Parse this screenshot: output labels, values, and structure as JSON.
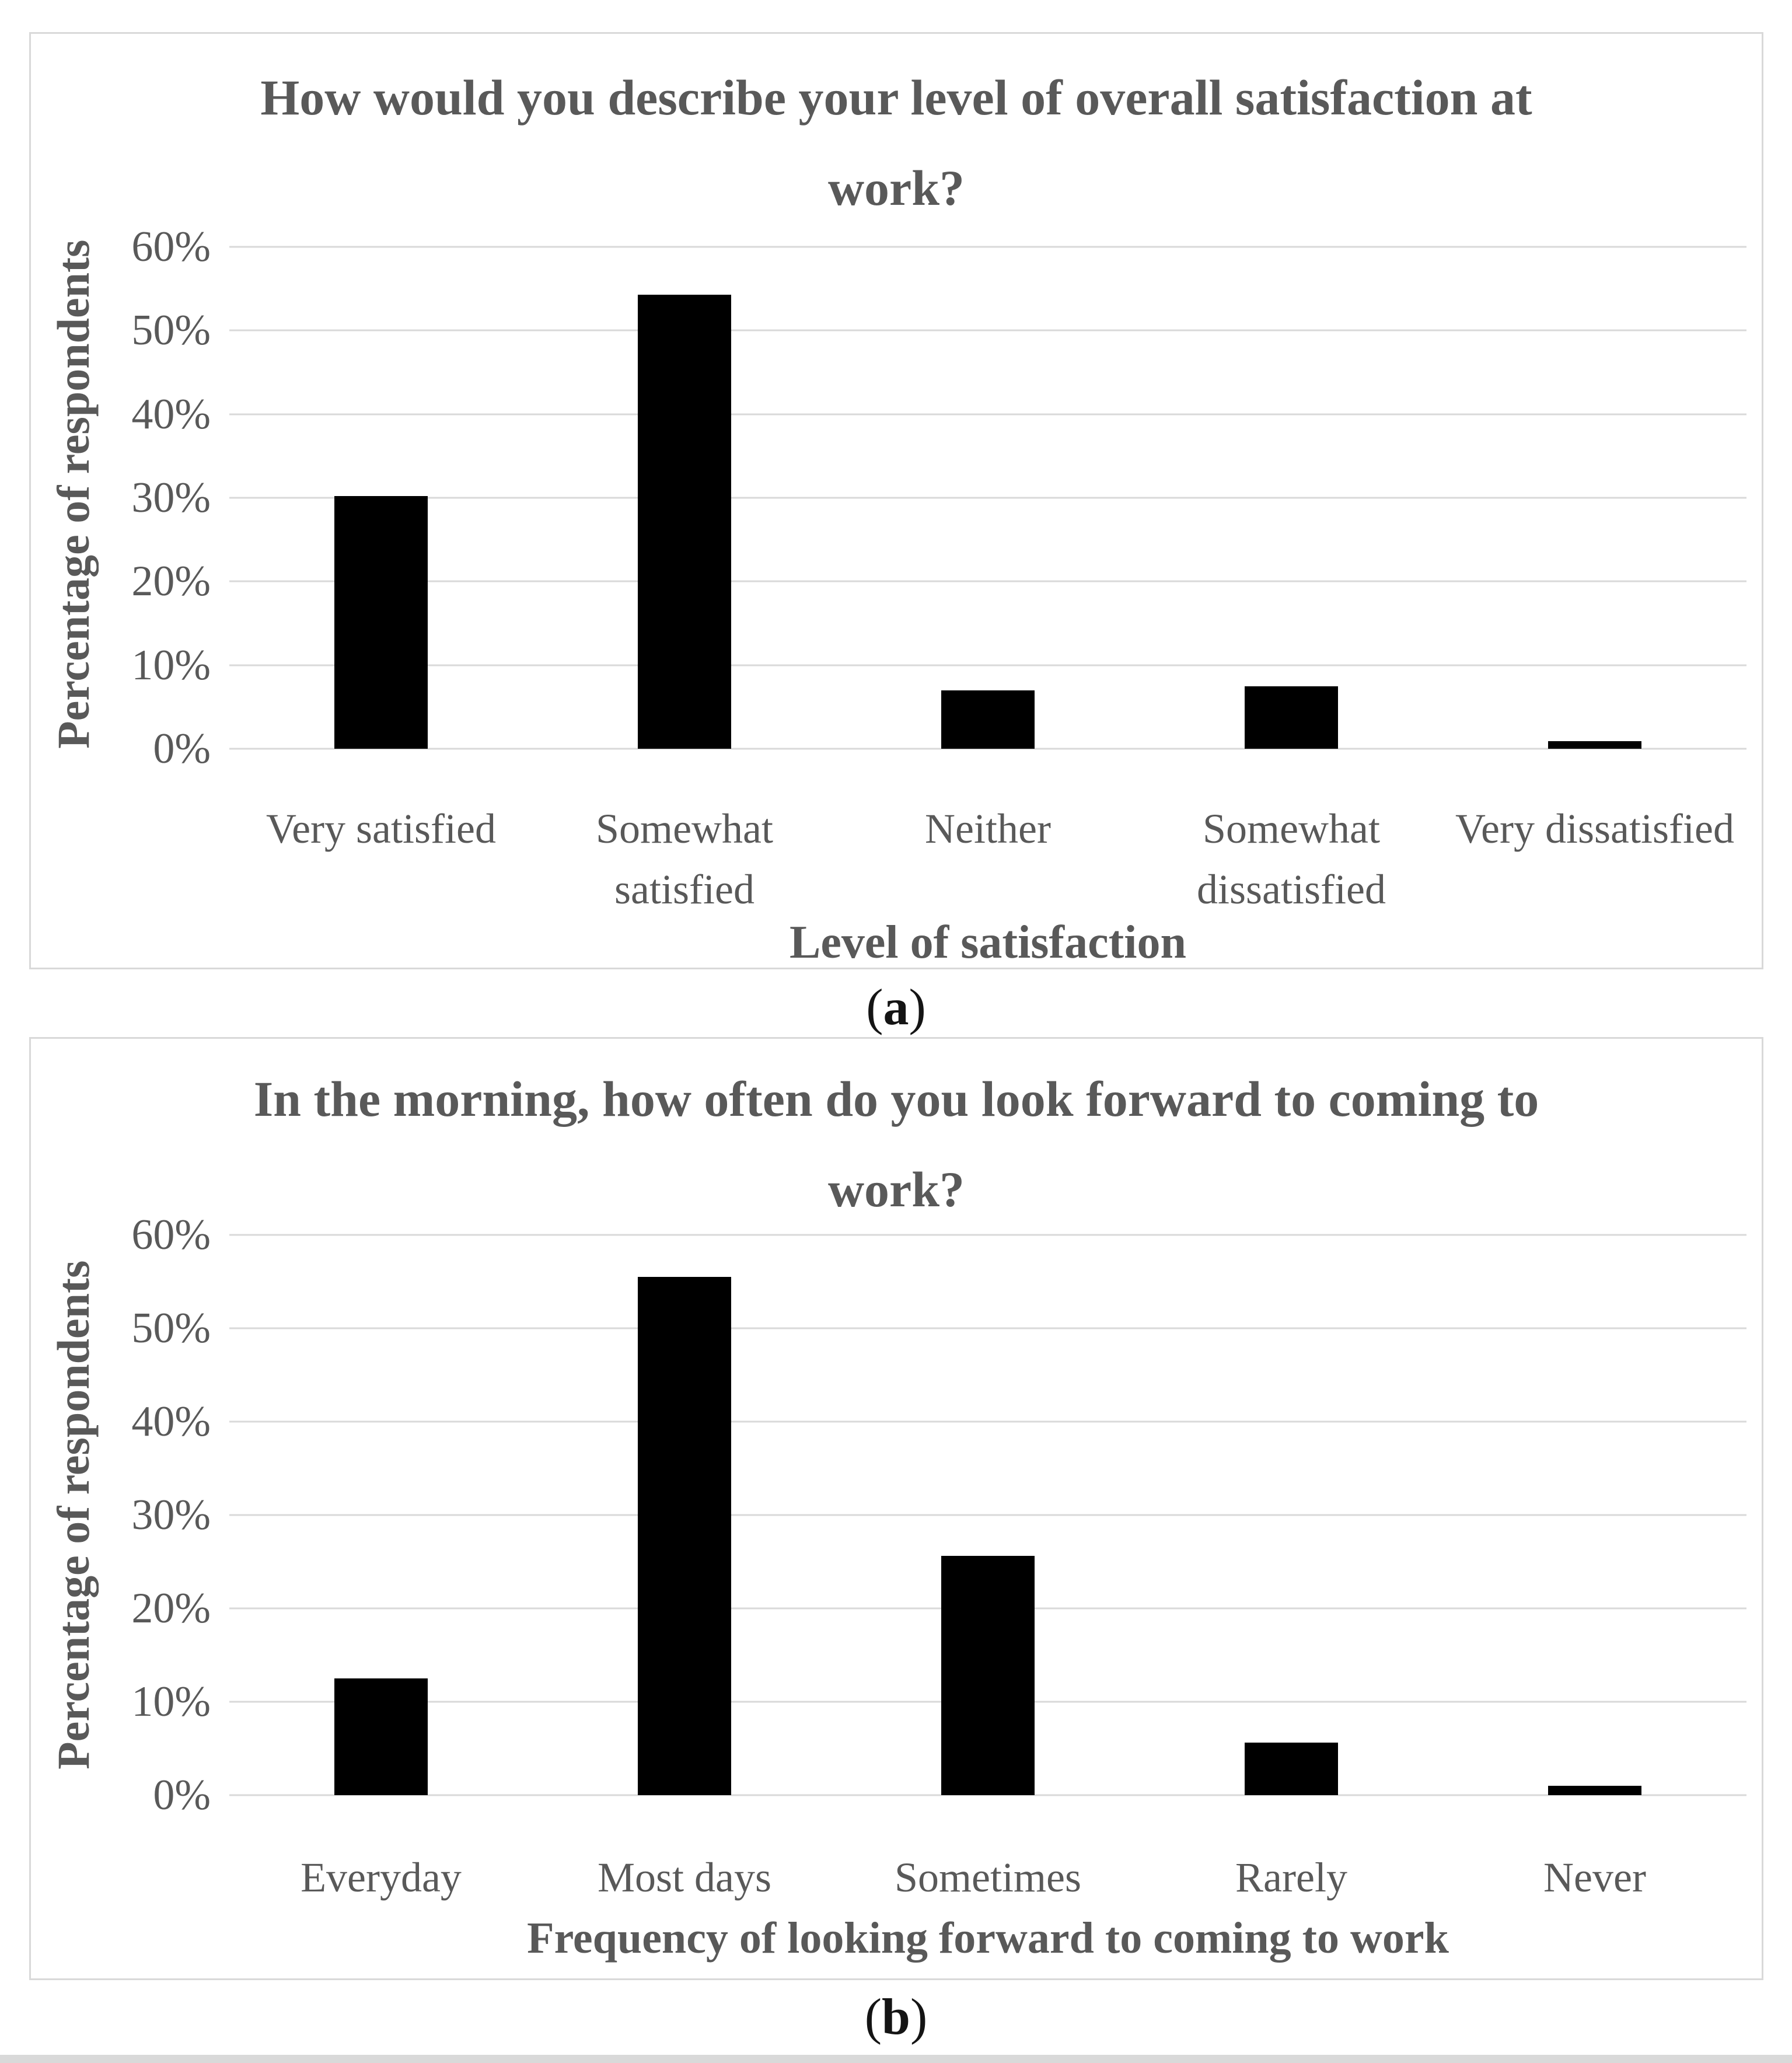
{
  "captions": {
    "a": {
      "open": "(",
      "letter": "a",
      "close": ")"
    },
    "b": {
      "open": "(",
      "letter": "b",
      "close": ")"
    }
  },
  "colors": {
    "bar": "#000000",
    "gridline": "#d9d9d9",
    "panel_border": "#d9d9d9",
    "axis_text": "#595959",
    "caption_text": "#141414"
  },
  "chart_data": [
    {
      "type": "bar",
      "title": "How would you describe your level of overall satisfaction at work?",
      "xlabel": "Level of satisfaction",
      "ylabel": "Percentage of respondents",
      "categories": [
        "Very satisfied",
        "Somewhat satisfied",
        "Neither",
        "Somewhat dissatisfied",
        "Very dissatisfied"
      ],
      "values": [
        30.2,
        54.3,
        7.0,
        7.5,
        0.9
      ],
      "value_unit": "%",
      "ylim": [
        0,
        60
      ],
      "ytick_labels": [
        "60%",
        "50%",
        "40%",
        "30%",
        "20%",
        "10%",
        "0%"
      ],
      "grid": true,
      "legend": "none",
      "bar_color": "#000000"
    },
    {
      "type": "bar",
      "title": "In the morning, how often do you look forward to coming to work?",
      "xlabel": "Frequency of looking forward to coming to work",
      "ylabel": "Percentage of respondents",
      "categories": [
        "Everyday",
        "Most days",
        "Sometimes",
        "Rarely",
        "Never"
      ],
      "values": [
        12.5,
        55.5,
        25.6,
        5.6,
        1.0
      ],
      "value_unit": "%",
      "ylim": [
        0,
        60
      ],
      "ytick_labels": [
        "60%",
        "50%",
        "40%",
        "30%",
        "20%",
        "10%",
        "0%"
      ],
      "grid": true,
      "legend": "none",
      "bar_color": "#000000"
    }
  ]
}
